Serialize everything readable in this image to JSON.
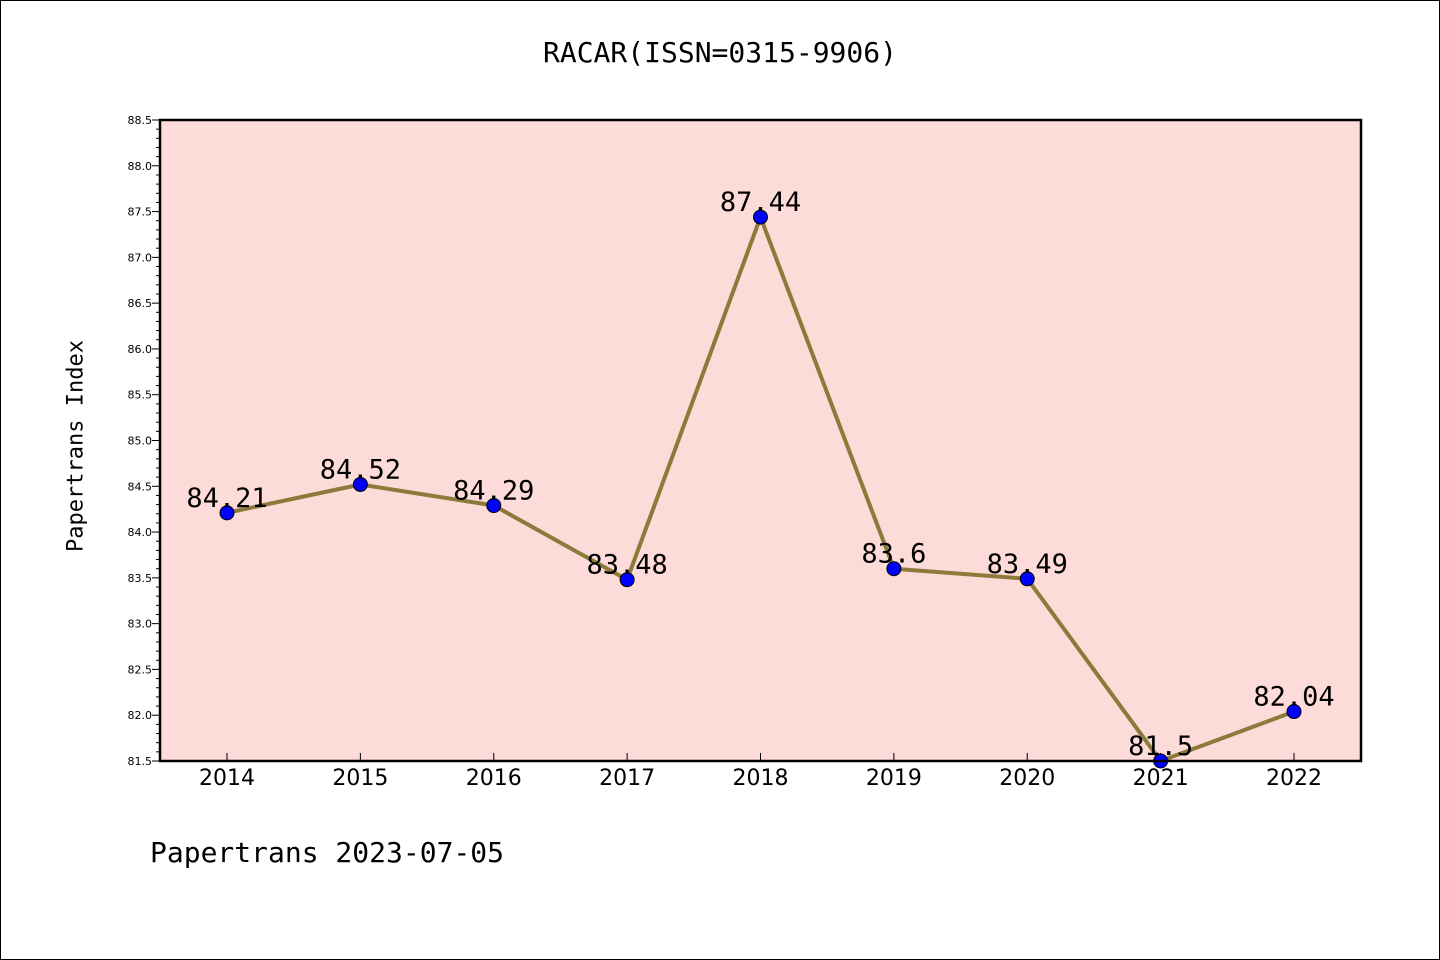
{
  "chart_data": {
    "type": "line",
    "title": "RACAR(ISSN=0315-9906)",
    "xlabel": "",
    "ylabel": "Papertrans Index",
    "categories": [
      "2014",
      "2015",
      "2016",
      "2017",
      "2018",
      "2019",
      "2020",
      "2021",
      "2022"
    ],
    "values": [
      84.21,
      84.52,
      84.29,
      83.48,
      87.44,
      83.6,
      83.49,
      81.5,
      82.04
    ],
    "data_labels": [
      "84.21",
      "84.52",
      "84.29",
      "83.48",
      "87.44",
      "83.6",
      "83.49",
      "81.5",
      "82.04"
    ],
    "ylim": [
      81.5,
      88.5
    ],
    "yticks": [
      "81.5",
      "82.0",
      "82.5",
      "83.0",
      "83.5",
      "84.0",
      "84.5",
      "85.0",
      "85.5",
      "86.0",
      "86.5",
      "87.0",
      "87.5",
      "88.0",
      "88.5"
    ],
    "grid": false,
    "legend": "none",
    "colors": {
      "plot_background": "#fddbd8",
      "line": "#8b7a3a",
      "marker": "#0000ff"
    }
  },
  "footer": "Papertrans 2023-07-05"
}
